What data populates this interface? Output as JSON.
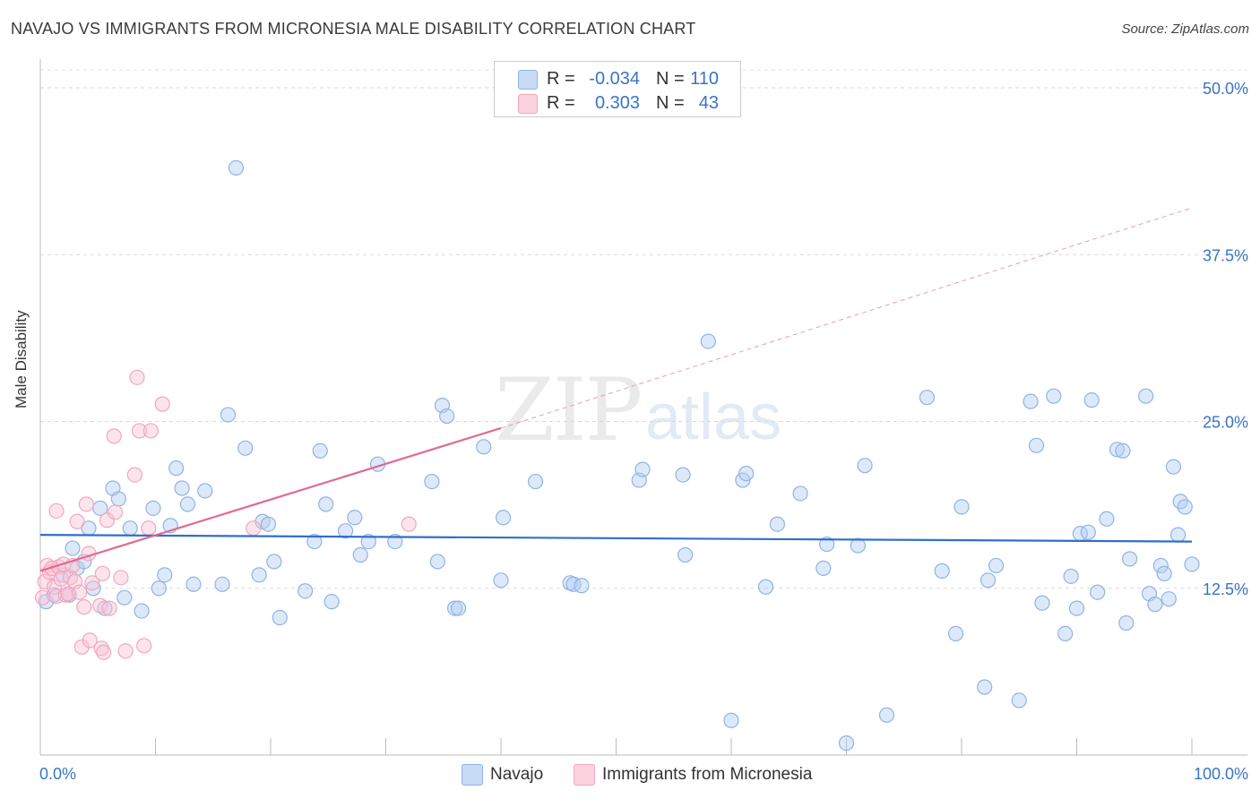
{
  "header": {
    "title": "NAVAJO VS IMMIGRANTS FROM MICRONESIA MALE DISABILITY CORRELATION CHART",
    "source": "Source: ZipAtlas.com"
  },
  "watermark": {
    "part1": "ZIP",
    "part2": "atlas"
  },
  "legend_top": [
    {
      "r_label": "R =",
      "r_value": "-0.034",
      "n_label": "N =",
      "n_value": "110",
      "color": "#8fb3e6"
    },
    {
      "r_label": "R =",
      "r_value": "0.303",
      "n_label": "N =",
      "n_value": "43",
      "color": "#f4a6bd"
    }
  ],
  "legend_bottom": [
    {
      "label": "Navajo",
      "color": "#8fb3e6"
    },
    {
      "label": "Immigrants from Micronesia",
      "color": "#f4a6bd"
    }
  ],
  "chart_data": {
    "type": "scatter",
    "title": "NAVAJO VS IMMIGRANTS FROM MICRONESIA MALE DISABILITY CORRELATION CHART",
    "xlabel": "",
    "ylabel": "Male Disability",
    "xlim": [
      0,
      100
    ],
    "ylim": [
      0,
      50
    ],
    "x_tick_labels": [
      "0.0%",
      "100.0%"
    ],
    "y_ticks": [
      12.5,
      25.0,
      37.5,
      50.0
    ],
    "y_tick_labels": [
      "12.5%",
      "25.0%",
      "37.5%",
      "50.0%"
    ],
    "grid": true,
    "series": [
      {
        "name": "Navajo",
        "color": "#8fb3e6",
        "trend": {
          "x0": 0,
          "y0": 16.5,
          "x1": 100,
          "y1": 16.0,
          "color": "#2f6fcc"
        },
        "points": [
          [
            0.5,
            11.5
          ],
          [
            1.2,
            12.0
          ],
          [
            2.0,
            13.5
          ],
          [
            2.5,
            12.0
          ],
          [
            2.8,
            15.5
          ],
          [
            3.2,
            14.0
          ],
          [
            3.8,
            14.5
          ],
          [
            4.2,
            17.0
          ],
          [
            4.6,
            12.5
          ],
          [
            5.2,
            18.5
          ],
          [
            5.6,
            11.0
          ],
          [
            6.3,
            20.0
          ],
          [
            6.8,
            19.2
          ],
          [
            7.3,
            11.8
          ],
          [
            7.8,
            17.0
          ],
          [
            8.8,
            10.8
          ],
          [
            9.8,
            18.5
          ],
          [
            10.3,
            12.5
          ],
          [
            10.8,
            13.5
          ],
          [
            11.3,
            17.2
          ],
          [
            11.8,
            21.5
          ],
          [
            12.3,
            20.0
          ],
          [
            12.8,
            18.8
          ],
          [
            13.3,
            12.8
          ],
          [
            14.3,
            19.8
          ],
          [
            15.8,
            12.8
          ],
          [
            16.3,
            25.5
          ],
          [
            17.0,
            44.0
          ],
          [
            17.8,
            23.0
          ],
          [
            19.0,
            13.5
          ],
          [
            19.3,
            17.5
          ],
          [
            19.8,
            17.3
          ],
          [
            20.3,
            14.5
          ],
          [
            20.8,
            10.3
          ],
          [
            23.0,
            12.3
          ],
          [
            23.8,
            16.0
          ],
          [
            24.3,
            22.8
          ],
          [
            24.8,
            18.8
          ],
          [
            25.3,
            11.5
          ],
          [
            26.5,
            16.8
          ],
          [
            27.3,
            17.8
          ],
          [
            27.8,
            15.0
          ],
          [
            28.5,
            16.0
          ],
          [
            29.3,
            21.8
          ],
          [
            30.8,
            16.0
          ],
          [
            34.0,
            20.5
          ],
          [
            34.5,
            14.5
          ],
          [
            34.9,
            26.2
          ],
          [
            35.3,
            25.4
          ],
          [
            36.0,
            11.0
          ],
          [
            36.3,
            11.0
          ],
          [
            38.5,
            23.1
          ],
          [
            40.0,
            13.1
          ],
          [
            40.2,
            17.8
          ],
          [
            43.0,
            20.5
          ],
          [
            46.0,
            12.9
          ],
          [
            46.3,
            12.8
          ],
          [
            52.0,
            20.6
          ],
          [
            52.3,
            21.4
          ],
          [
            56.0,
            15.0
          ],
          [
            58.0,
            31.0
          ],
          [
            60.0,
            2.6
          ],
          [
            61.0,
            20.6
          ],
          [
            61.3,
            21.1
          ],
          [
            63.0,
            12.6
          ],
          [
            64.0,
            17.3
          ],
          [
            66.0,
            19.6
          ],
          [
            68.0,
            14.0
          ],
          [
            68.3,
            15.8
          ],
          [
            70.0,
            0.9
          ],
          [
            71.0,
            15.7
          ],
          [
            71.6,
            21.7
          ],
          [
            73.5,
            3.0
          ],
          [
            77.0,
            26.8
          ],
          [
            78.3,
            13.8
          ],
          [
            79.5,
            9.1
          ],
          [
            80.0,
            18.6
          ],
          [
            82.0,
            5.1
          ],
          [
            82.3,
            13.1
          ],
          [
            83.0,
            14.2
          ],
          [
            85.0,
            4.1
          ],
          [
            86.0,
            26.5
          ],
          [
            86.5,
            23.2
          ],
          [
            87.0,
            11.4
          ],
          [
            88.0,
            26.9
          ],
          [
            89.0,
            9.1
          ],
          [
            89.5,
            13.4
          ],
          [
            90.0,
            11.0
          ],
          [
            90.3,
            16.6
          ],
          [
            91.0,
            16.7
          ],
          [
            91.3,
            26.6
          ],
          [
            91.8,
            12.2
          ],
          [
            92.6,
            17.7
          ],
          [
            93.5,
            22.9
          ],
          [
            94.0,
            22.8
          ],
          [
            94.3,
            9.9
          ],
          [
            94.6,
            14.7
          ],
          [
            96.0,
            26.9
          ],
          [
            96.3,
            12.1
          ],
          [
            96.8,
            11.3
          ],
          [
            97.3,
            14.2
          ],
          [
            97.6,
            13.6
          ],
          [
            98.0,
            11.7
          ],
          [
            98.4,
            21.6
          ],
          [
            98.8,
            16.5
          ],
          [
            99.0,
            19.0
          ],
          [
            99.4,
            18.6
          ],
          [
            100.0,
            14.3
          ],
          [
            47.0,
            12.7
          ],
          [
            55.8,
            21.0
          ]
        ]
      },
      {
        "name": "Immigrants from Micronesia",
        "color": "#f4a6bd",
        "trend": {
          "x0": 0,
          "y0": 13.8,
          "x1": 40,
          "y1": 24.5,
          "color": "#e06a93"
        },
        "trend_extension": {
          "x0": 40,
          "y0": 24.5,
          "x1": 100,
          "y1": 41.0
        },
        "points": [
          [
            0.2,
            11.8
          ],
          [
            0.4,
            13.0
          ],
          [
            0.6,
            14.2
          ],
          [
            0.8,
            13.7
          ],
          [
            1.0,
            14.0
          ],
          [
            1.2,
            12.6
          ],
          [
            1.4,
            11.9
          ],
          [
            1.6,
            14.1
          ],
          [
            1.8,
            13.2
          ],
          [
            2.0,
            14.3
          ],
          [
            2.2,
            12.0
          ],
          [
            2.4,
            12.1
          ],
          [
            2.6,
            13.3
          ],
          [
            2.8,
            14.2
          ],
          [
            3.0,
            13.0
          ],
          [
            3.2,
            17.5
          ],
          [
            3.4,
            12.2
          ],
          [
            3.6,
            8.1
          ],
          [
            3.8,
            11.1
          ],
          [
            4.0,
            18.8
          ],
          [
            4.2,
            15.1
          ],
          [
            4.3,
            8.6
          ],
          [
            4.5,
            12.9
          ],
          [
            5.2,
            11.2
          ],
          [
            5.3,
            8.0
          ],
          [
            5.4,
            13.6
          ],
          [
            5.5,
            7.7
          ],
          [
            5.8,
            17.6
          ],
          [
            6.0,
            11.0
          ],
          [
            6.4,
            23.9
          ],
          [
            6.5,
            18.2
          ],
          [
            7.0,
            13.3
          ],
          [
            7.4,
            7.8
          ],
          [
            8.2,
            21.0
          ],
          [
            8.4,
            28.3
          ],
          [
            8.6,
            24.3
          ],
          [
            9.0,
            8.2
          ],
          [
            9.4,
            17.0
          ],
          [
            9.6,
            24.3
          ],
          [
            10.6,
            26.3
          ],
          [
            18.5,
            17.0
          ],
          [
            1.4,
            18.3
          ],
          [
            32.0,
            17.3
          ]
        ]
      }
    ]
  }
}
